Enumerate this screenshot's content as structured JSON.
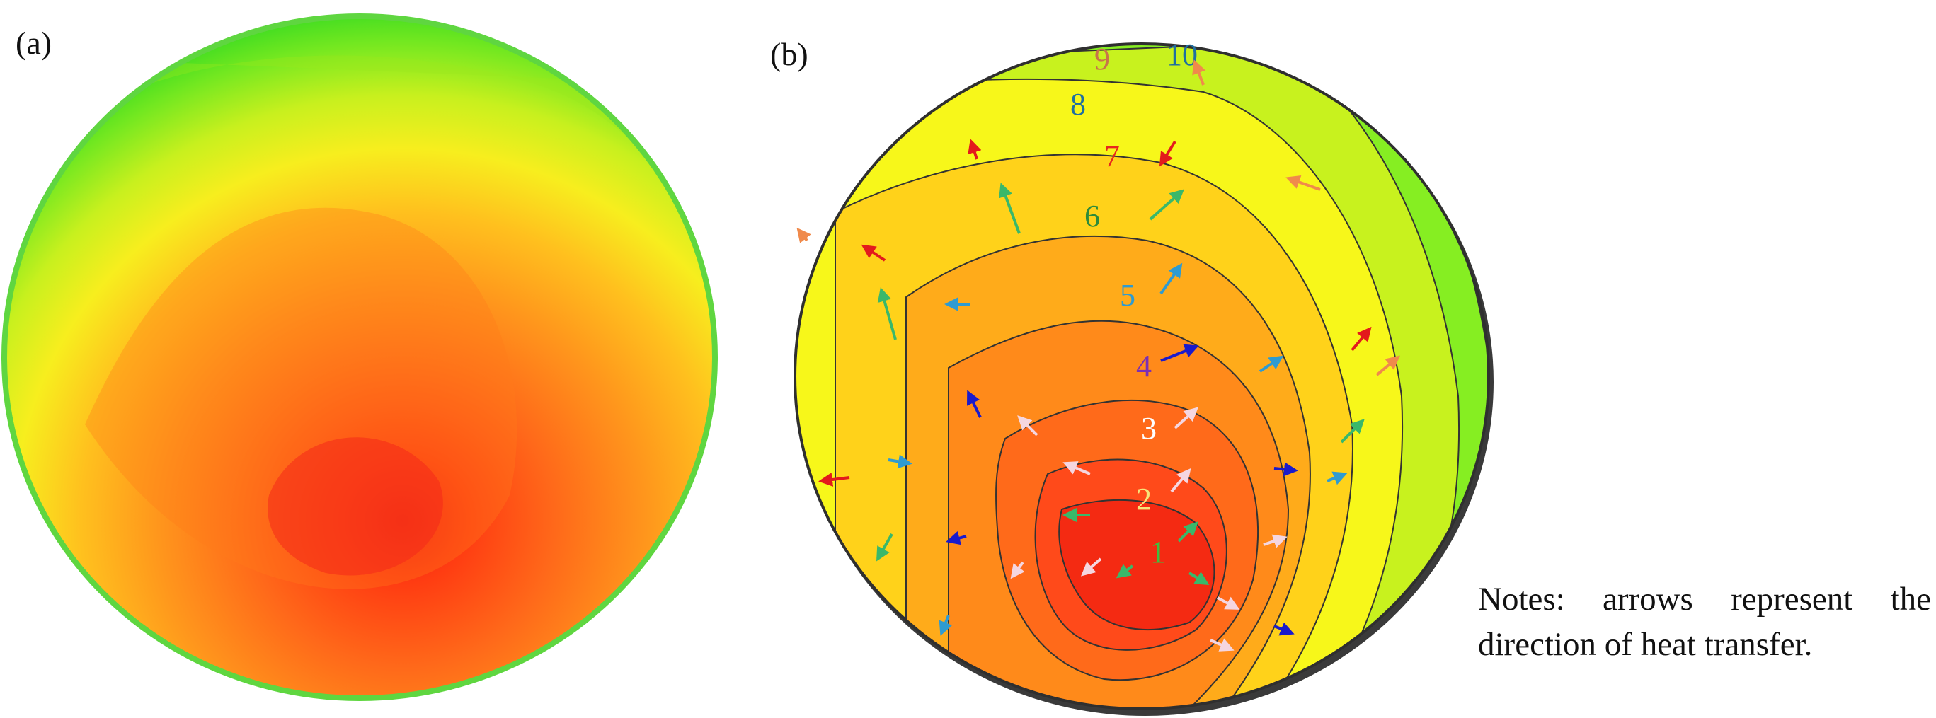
{
  "panels": [
    {
      "label": "(a)"
    },
    {
      "label": "(b)"
    }
  ],
  "zones": [
    {
      "num": "1",
      "color": "#3fbf3f"
    },
    {
      "num": "2",
      "color": "#f7e37a"
    },
    {
      "num": "3",
      "color": "#ffffff"
    },
    {
      "num": "4",
      "color": "#7b2fb5"
    },
    {
      "num": "5",
      "color": "#2f9bd1"
    },
    {
      "num": "6",
      "color": "#2e8b3a"
    },
    {
      "num": "7",
      "color": "#e8261c"
    },
    {
      "num": "8",
      "color": "#1f6fa0"
    },
    {
      "num": "9",
      "color": "#c8744a"
    },
    {
      "num": "10",
      "color": "#1f6fa0"
    }
  ],
  "arrow_colors": {
    "red": "#e31a1c",
    "orange": "#f08a4b",
    "green": "#3ab86a",
    "sky": "#2f9bd1",
    "blue": "#1a1acc",
    "white": "#f5d6e0"
  },
  "heat_colors": [
    "#22dd22",
    "#88ee22",
    "#ccf21e",
    "#f7f71a",
    "#ffd21a",
    "#ffab1a",
    "#ff8a1a",
    "#ff6a1a",
    "#ff4a1a",
    "#f42a12"
  ],
  "note": {
    "line1": "Notes: arrows represent the",
    "line2": "direction of heat transfer."
  }
}
